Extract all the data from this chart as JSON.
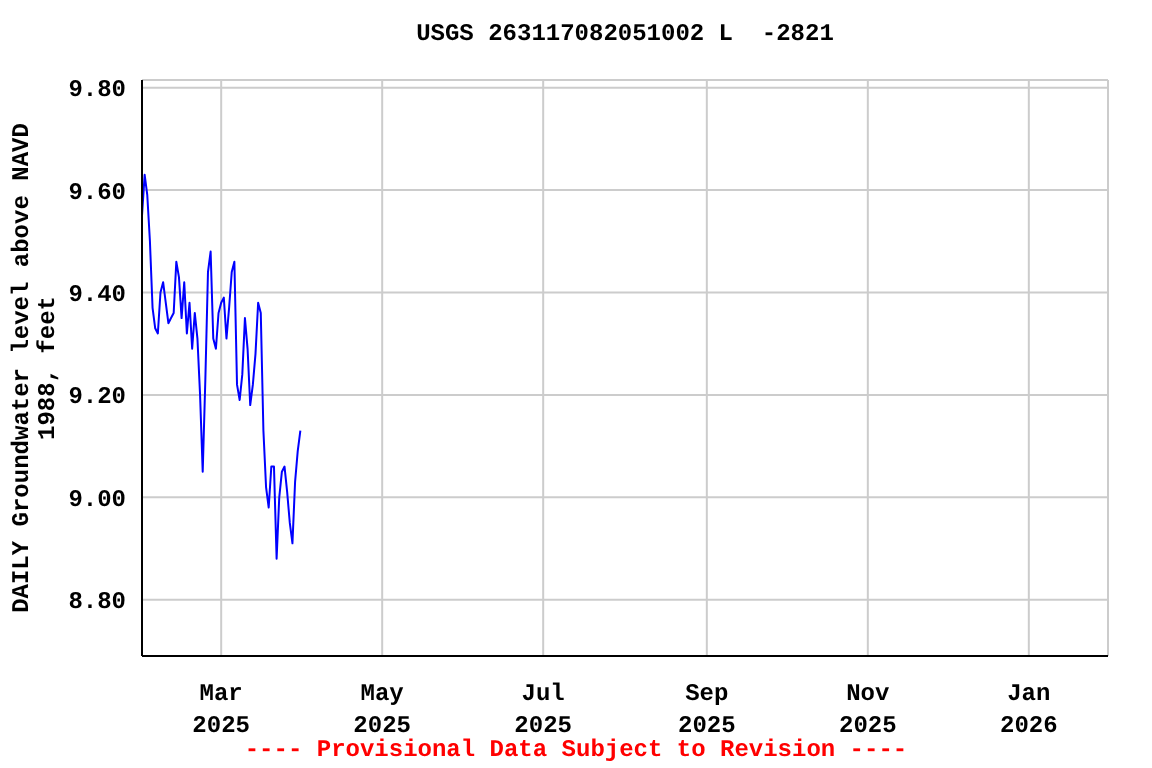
{
  "chart_data": {
    "type": "line",
    "title": "USGS 263117082051002 L  -2821",
    "ylabel": "DAILY Groundwater level above NAVD\n1988, feet",
    "annotations": [
      "---- Provisional Data Subject to Revision ----"
    ],
    "x": [
      "2025-01-30",
      "2025-01-31",
      "2025-02-01",
      "2025-02-02",
      "2025-02-03",
      "2025-02-04",
      "2025-02-05",
      "2025-02-06",
      "2025-02-07",
      "2025-02-08",
      "2025-02-09",
      "2025-02-10",
      "2025-02-11",
      "2025-02-12",
      "2025-02-13",
      "2025-02-14",
      "2025-02-15",
      "2025-02-16",
      "2025-02-17",
      "2025-02-18",
      "2025-02-19",
      "2025-02-20",
      "2025-02-21",
      "2025-02-22",
      "2025-02-23",
      "2025-02-24",
      "2025-02-25",
      "2025-02-26",
      "2025-02-27",
      "2025-02-28",
      "2025-03-01",
      "2025-03-02",
      "2025-03-03",
      "2025-03-04",
      "2025-03-05",
      "2025-03-06",
      "2025-03-07",
      "2025-03-08",
      "2025-03-09",
      "2025-03-10",
      "2025-03-11",
      "2025-03-12",
      "2025-03-13",
      "2025-03-14",
      "2025-03-15",
      "2025-03-16",
      "2025-03-17",
      "2025-03-18",
      "2025-03-19",
      "2025-03-20",
      "2025-03-21",
      "2025-03-22",
      "2025-03-23",
      "2025-03-24",
      "2025-03-25",
      "2025-03-26",
      "2025-03-27",
      "2025-03-28",
      "2025-03-29",
      "2025-03-30",
      "2025-03-31"
    ],
    "series": [
      {
        "color": "#0000ff",
        "values": [
          9.55,
          9.63,
          9.59,
          9.5,
          9.37,
          9.33,
          9.32,
          9.4,
          9.42,
          9.38,
          9.34,
          9.35,
          9.36,
          9.46,
          9.43,
          9.35,
          9.42,
          9.32,
          9.38,
          9.29,
          9.36,
          9.31,
          9.2,
          9.05,
          9.23,
          9.44,
          9.48,
          9.31,
          9.29,
          9.36,
          9.38,
          9.39,
          9.31,
          9.37,
          9.44,
          9.46,
          9.22,
          9.19,
          9.24,
          9.35,
          9.29,
          9.18,
          9.22,
          9.28,
          9.38,
          9.36,
          9.13,
          9.02,
          8.98,
          9.06,
          9.06,
          8.88,
          9.0,
          9.05,
          9.06,
          9.01,
          8.95,
          8.91,
          9.03,
          9.09,
          9.13
        ]
      }
    ],
    "xlim": [
      "2025-01-30",
      "2026-01-31"
    ],
    "xticks": [
      {
        "value": "2025-03-01",
        "label": "Mar\n2025"
      },
      {
        "value": "2025-05-01",
        "label": "May\n2025"
      },
      {
        "value": "2025-07-01",
        "label": "Jul\n2025"
      },
      {
        "value": "2025-09-01",
        "label": "Sep\n2025"
      },
      {
        "value": "2025-11-01",
        "label": "Nov\n2025"
      },
      {
        "value": "2026-01-01",
        "label": "Jan\n2026"
      }
    ],
    "ylim": [
      8.69,
      9.815
    ],
    "yticks": [
      {
        "value": 8.8,
        "label": "8.80"
      },
      {
        "value": 9.0,
        "label": "9.00"
      },
      {
        "value": 9.2,
        "label": "9.20"
      },
      {
        "value": 9.4,
        "label": "9.40"
      },
      {
        "value": 9.6,
        "label": "9.60"
      },
      {
        "value": 9.8,
        "label": "9.80"
      }
    ],
    "grid": true,
    "marker": "none",
    "line_style": "solid",
    "legend": false
  }
}
